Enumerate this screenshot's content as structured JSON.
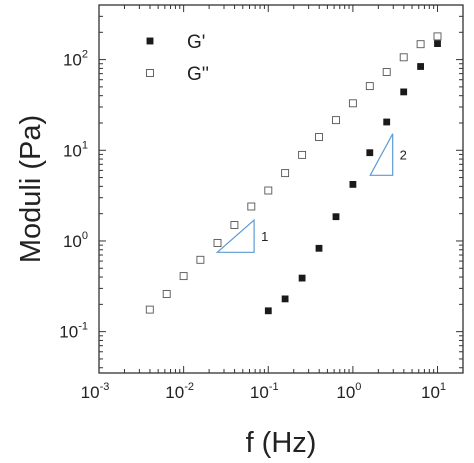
{
  "chart_data": {
    "type": "scatter",
    "xlabel": "f (Hz)",
    "ylabel": "Moduli (Pa)",
    "xscale": "log",
    "yscale": "log",
    "xlim": [
      0.001,
      20
    ],
    "ylim": [
      0.035,
      400
    ],
    "x_ticks": [
      {
        "value": 0.001,
        "base": "10",
        "exp": "-3"
      },
      {
        "value": 0.01,
        "base": "10",
        "exp": "-2"
      },
      {
        "value": 0.1,
        "base": "10",
        "exp": "-1"
      },
      {
        "value": 1,
        "base": "10",
        "exp": "0"
      },
      {
        "value": 10,
        "base": "10",
        "exp": "1"
      }
    ],
    "y_ticks": [
      {
        "value": 0.1,
        "base": "10",
        "exp": "-1"
      },
      {
        "value": 1,
        "base": "10",
        "exp": "0"
      },
      {
        "value": 10,
        "base": "10",
        "exp": "1"
      },
      {
        "value": 100,
        "base": "10",
        "exp": "2"
      }
    ],
    "legend_position": "top-left",
    "grid": false,
    "series": [
      {
        "name": "G'",
        "marker": "filled-square",
        "color": "#1a1a1a",
        "points": [
          [
            0.1,
            0.17
          ],
          [
            0.158,
            0.23
          ],
          [
            0.251,
            0.39
          ],
          [
            0.398,
            0.83
          ],
          [
            0.631,
            1.85
          ],
          [
            1.0,
            4.2
          ],
          [
            1.585,
            9.4
          ],
          [
            2.512,
            20.5
          ],
          [
            3.981,
            44
          ],
          [
            6.31,
            84
          ],
          [
            10.0,
            150
          ]
        ]
      },
      {
        "name": "G''",
        "marker": "open-square",
        "color": "#555555",
        "points": [
          [
            0.00398,
            0.175
          ],
          [
            0.00631,
            0.26
          ],
          [
            0.01,
            0.41
          ],
          [
            0.0158,
            0.62
          ],
          [
            0.0251,
            0.95
          ],
          [
            0.0398,
            1.5
          ],
          [
            0.0631,
            2.4
          ],
          [
            0.1,
            3.6
          ],
          [
            0.158,
            5.6
          ],
          [
            0.251,
            8.9
          ],
          [
            0.398,
            14
          ],
          [
            0.631,
            21.5
          ],
          [
            1.0,
            33
          ],
          [
            1.585,
            51
          ],
          [
            2.512,
            73
          ],
          [
            3.981,
            106
          ],
          [
            6.31,
            148
          ],
          [
            10.0,
            180
          ]
        ]
      }
    ],
    "annotations": [
      {
        "label": "1",
        "type": "slope-triangle",
        "color": "#5b9bd5",
        "vertices": [
          [
            0.025,
            0.75
          ],
          [
            0.068,
            0.75
          ],
          [
            0.068,
            1.7
          ]
        ]
      },
      {
        "label": "2",
        "type": "slope-triangle",
        "color": "#5b9bd5",
        "vertices": [
          [
            1.6,
            5.3
          ],
          [
            2.95,
            5.3
          ],
          [
            2.95,
            15.2
          ]
        ]
      }
    ]
  }
}
